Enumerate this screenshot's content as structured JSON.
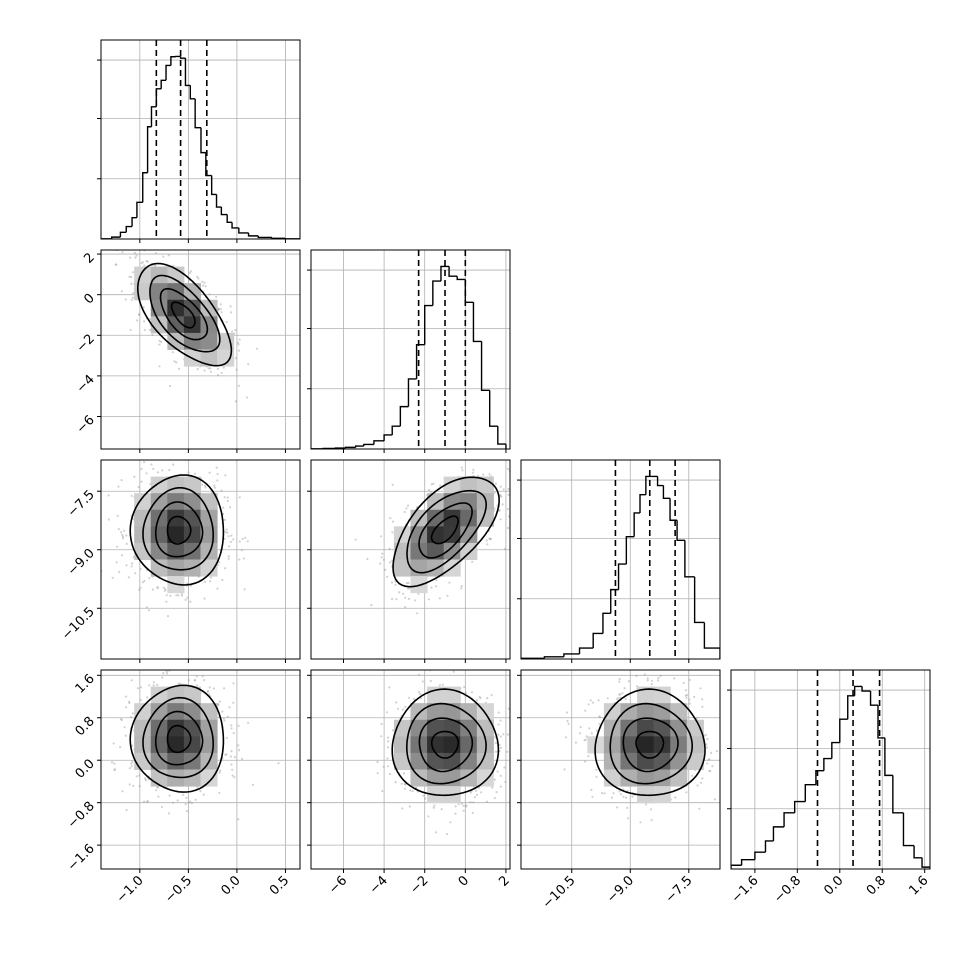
{
  "chart_data": {
    "type": "corner",
    "parameters": [
      {
        "range": [
          -1.4,
          0.65
        ],
        "ticks": [
          -1.0,
          -0.5,
          0.0,
          0.5
        ],
        "tick_labels": [
          "−1.0",
          "−0.5",
          "0.0",
          "0.5"
        ]
      },
      {
        "range": [
          -7.6,
          2.2
        ],
        "ticks": [
          -6,
          -4,
          -2,
          0,
          2
        ],
        "tick_labels": [
          "−6",
          "−4",
          "−2",
          "0",
          "2"
        ]
      },
      {
        "range": [
          -11.8,
          -6.7
        ],
        "ticks": [
          -10.5,
          -9.0,
          -7.5
        ],
        "tick_labels": [
          "−10.5",
          "−9.0",
          "−7.5"
        ]
      },
      {
        "range": [
          -2.05,
          1.7
        ],
        "ticks": [
          -1.6,
          -0.8,
          0.0,
          0.8,
          1.6
        ],
        "tick_labels": [
          "−1.6",
          "−0.8",
          "0.0",
          "0.8",
          "1.6"
        ]
      }
    ],
    "histograms": [
      {
        "param": 0,
        "quantiles": [
          -0.83,
          -0.58,
          -0.31
        ],
        "edges": [
          -1.4,
          -1.29,
          -1.2,
          -1.14,
          -1.08,
          -1.03,
          -0.97,
          -0.92,
          -0.88,
          -0.83,
          -0.78,
          -0.73,
          -0.68,
          -0.63,
          -0.58,
          -0.53,
          -0.48,
          -0.43,
          -0.37,
          -0.32,
          -0.26,
          -0.21,
          -0.16,
          -0.1,
          -0.05,
          0.02,
          0.12,
          0.22,
          0.36,
          0.5,
          0.65
        ],
        "counts": [
          1,
          12,
          43,
          80,
          137,
          235,
          425,
          720,
          848,
          963,
          1018,
          1113,
          1169,
          1171,
          1160,
          985,
          899,
          714,
          554,
          407,
          286,
          205,
          157,
          107,
          71,
          39,
          20,
          10,
          4,
          1
        ]
      },
      {
        "param": 1,
        "quantiles": [
          -2.3,
          -1.0,
          0.0
        ],
        "edges": [
          -7.6,
          -7.0,
          -6.4,
          -5.9,
          -5.4,
          -5.0,
          -4.5,
          -4.0,
          -3.6,
          -3.2,
          -2.8,
          -2.4,
          -2.0,
          -1.6,
          -1.2,
          -0.8,
          -0.4,
          0.0,
          0.4,
          0.8,
          1.2,
          1.6,
          2.0
        ],
        "counts": [
          1,
          3,
          6,
          10,
          18,
          28,
          50,
          86,
          140,
          260,
          430,
          640,
          880,
          1030,
          1120,
          1060,
          1040,
          900,
          660,
          360,
          140,
          30
        ]
      },
      {
        "param": 2,
        "quantiles": [
          -9.38,
          -8.5,
          -7.85
        ],
        "edges": [
          -11.8,
          -11.2,
          -10.7,
          -10.3,
          -9.95,
          -9.7,
          -9.5,
          -9.3,
          -9.1,
          -8.9,
          -8.75,
          -8.6,
          -8.45,
          -8.3,
          -8.15,
          -7.98,
          -7.8,
          -7.6,
          -7.35,
          -7.1,
          -6.7
        ],
        "counts": [
          4,
          12,
          28,
          60,
          140,
          250,
          380,
          520,
          670,
          800,
          900,
          1000,
          1000,
          950,
          880,
          760,
          650,
          450,
          200,
          60
        ]
      },
      {
        "param": 3,
        "quantiles": [
          -0.42,
          0.25,
          0.75
        ],
        "edges": [
          -2.05,
          -1.85,
          -1.6,
          -1.4,
          -1.25,
          -1.05,
          -0.85,
          -0.65,
          -0.45,
          -0.3,
          -0.15,
          0.0,
          0.15,
          0.28,
          0.42,
          0.58,
          0.72,
          0.85,
          1.0,
          1.2,
          1.4,
          1.55,
          1.7
        ],
        "counts": [
          4,
          10,
          18,
          30,
          45,
          60,
          72,
          90,
          105,
          118,
          135,
          160,
          185,
          195,
          190,
          175,
          140,
          100,
          60,
          25,
          12,
          2
        ]
      }
    ],
    "pairs": [
      {
        "x": 0,
        "y": 1,
        "center": [
          -0.55,
          -1.0
        ],
        "sd": [
          0.24,
          1.25
        ],
        "rho": -0.62
      },
      {
        "x": 0,
        "y": 2,
        "center": [
          -0.6,
          -8.5
        ],
        "sd": [
          0.24,
          0.7
        ],
        "rho": 0.0
      },
      {
        "x": 1,
        "y": 2,
        "center": [
          -1.0,
          -8.5
        ],
        "sd": [
          1.3,
          0.7
        ],
        "rho": 0.6
      },
      {
        "x": 0,
        "y": 3,
        "center": [
          -0.6,
          0.4
        ],
        "sd": [
          0.24,
          0.5
        ],
        "rho": 0.0
      },
      {
        "x": 1,
        "y": 3,
        "center": [
          -1.0,
          0.3
        ],
        "sd": [
          1.3,
          0.5
        ],
        "rho": 0.0
      },
      {
        "x": 2,
        "y": 3,
        "center": [
          -8.5,
          0.3
        ],
        "sd": [
          0.7,
          0.5
        ],
        "rho": 0.0
      }
    ],
    "contour_levels_sigma": [
      0.5,
      1.0,
      1.5,
      2.0
    ],
    "grid": true,
    "colors": {
      "contour": "#000000",
      "density_dark": "#222222",
      "scatter": "#999999",
      "grid": "#b0b0b0"
    }
  }
}
